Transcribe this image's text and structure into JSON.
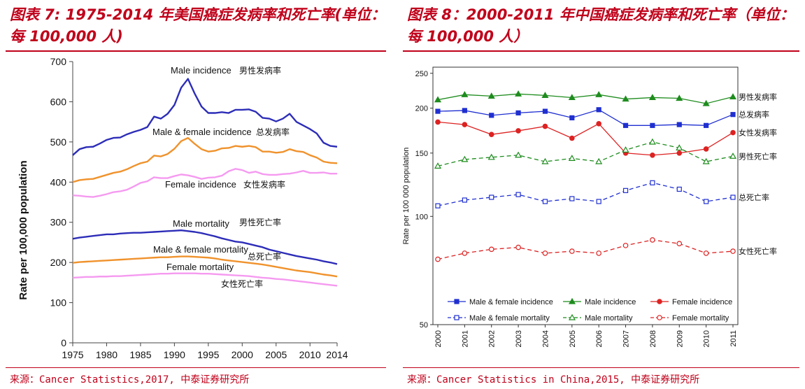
{
  "left": {
    "title": "图表 7: 1975-2014 年美国癌症发病率和死亡率(单位：每 100,000 人)",
    "source": "来源：Cancer Statistics,2017, 中泰证券研究所",
    "colors": {
      "blue": "#2d2db8",
      "orange": "#f0922c",
      "pink": "#f59af0",
      "axis": "#444444"
    },
    "chart_data": {
      "type": "line",
      "ylabel": "Rate per 100,000 population",
      "ylim": [
        0,
        700
      ],
      "yticks": [
        0,
        100,
        200,
        300,
        400,
        500,
        600,
        700
      ],
      "xlim": [
        1975,
        2014
      ],
      "xticks": [
        1975,
        1980,
        1985,
        1990,
        1995,
        2000,
        2005,
        2010,
        2014
      ],
      "x": [
        1975,
        1976,
        1977,
        1978,
        1979,
        1980,
        1981,
        1982,
        1983,
        1984,
        1985,
        1986,
        1987,
        1988,
        1989,
        1990,
        1991,
        1992,
        1993,
        1994,
        1995,
        1996,
        1997,
        1998,
        1999,
        2000,
        2001,
        2002,
        2003,
        2004,
        2005,
        2006,
        2007,
        2008,
        2009,
        2010,
        2011,
        2012,
        2013,
        2014
      ],
      "series": [
        {
          "name": "Male incidence",
          "name_zh": "男性发病率",
          "color": "blue",
          "values": [
            467,
            482,
            487,
            488,
            496,
            505,
            510,
            511,
            519,
            525,
            530,
            537,
            563,
            558,
            570,
            592,
            635,
            657,
            620,
            588,
            572,
            572,
            574,
            572,
            580,
            580,
            581,
            575,
            560,
            558,
            551,
            558,
            570,
            550,
            541,
            532,
            521,
            498,
            490,
            488
          ]
        },
        {
          "name": "Male & female incidence",
          "name_zh": "总发病率",
          "color": "orange",
          "values": [
            400,
            405,
            407,
            408,
            413,
            418,
            423,
            426,
            432,
            440,
            447,
            451,
            466,
            464,
            470,
            483,
            502,
            510,
            495,
            482,
            476,
            478,
            484,
            485,
            490,
            488,
            490,
            487,
            476,
            476,
            473,
            475,
            482,
            477,
            475,
            467,
            461,
            451,
            448,
            447
          ]
        },
        {
          "name": "Female incidence",
          "name_zh": "女性发病率",
          "color": "pink",
          "values": [
            367,
            366,
            364,
            363,
            366,
            370,
            375,
            377,
            381,
            389,
            398,
            402,
            412,
            410,
            410,
            415,
            419,
            417,
            413,
            408,
            411,
            412,
            416,
            427,
            433,
            430,
            423,
            426,
            420,
            418,
            418,
            420,
            421,
            424,
            428,
            423,
            423,
            424,
            421,
            421
          ]
        },
        {
          "name": "Male mortality",
          "name_zh": "男性死亡率",
          "color": "blue",
          "values": [
            259,
            262,
            264,
            266,
            268,
            270,
            270,
            272,
            273,
            274,
            274,
            275,
            276,
            277,
            278,
            279,
            280,
            278,
            276,
            273,
            269,
            265,
            260,
            256,
            252,
            250,
            246,
            242,
            238,
            232,
            228,
            224,
            220,
            216,
            213,
            210,
            207,
            203,
            200,
            196
          ]
        },
        {
          "name": "Male & female mortality",
          "name_zh": "总死亡率",
          "color": "orange",
          "values": [
            199,
            201,
            202,
            203,
            204,
            205,
            206,
            207,
            208,
            209,
            210,
            211,
            212,
            213,
            213,
            214,
            215,
            215,
            214,
            213,
            212,
            210,
            207,
            205,
            203,
            201,
            199,
            197,
            195,
            192,
            189,
            186,
            183,
            180,
            178,
            176,
            173,
            170,
            168,
            165
          ]
        },
        {
          "name": "Female mortality",
          "name_zh": "女性死亡率",
          "color": "pink",
          "values": [
            162,
            163,
            164,
            164,
            165,
            165,
            166,
            166,
            167,
            168,
            169,
            170,
            171,
            172,
            172,
            173,
            173,
            173,
            173,
            172,
            172,
            171,
            170,
            169,
            168,
            167,
            166,
            164,
            162,
            161,
            159,
            158,
            156,
            154,
            152,
            150,
            148,
            146,
            144,
            142
          ]
        }
      ]
    }
  },
  "right": {
    "title": "图表 8：2000-2011 年中国癌症发病率和死亡率（单位：每 100,000 人）",
    "source": "来源：Cancer Statistics in China,2015, 中泰证券研究所",
    "colors": {
      "blue": "#1f2fd0",
      "green": "#1e8c1e",
      "red": "#dd2222",
      "axis": "#333333"
    },
    "chart_data": {
      "type": "line",
      "yscale": "log",
      "ylabel": "Rate per 100 000 population",
      "ylim": [
        50,
        260
      ],
      "yticks": [
        50,
        100,
        150,
        200,
        250
      ],
      "x": [
        "2000",
        "2001",
        "2002",
        "2003",
        "2004",
        "2005",
        "2006",
        "2007",
        "2008",
        "2009",
        "2010",
        "2011"
      ],
      "series": [
        {
          "name": "Male incidence",
          "name_zh": "男性发病率",
          "color": "green",
          "style": "solid",
          "marker": "triangle-filled",
          "values": [
            211,
            218,
            216,
            219,
            217,
            214,
            218,
            212,
            214,
            213,
            206,
            215
          ]
        },
        {
          "name": "Male & female incidence",
          "name_zh": "总发病率",
          "color": "blue",
          "style": "solid",
          "marker": "square-filled",
          "values": [
            196,
            197,
            191,
            194,
            196,
            188,
            198,
            179,
            179,
            180,
            179,
            192
          ]
        },
        {
          "name": "Female incidence",
          "name_zh": "女性发病率",
          "color": "red",
          "style": "solid",
          "marker": "circle-filled",
          "values": [
            183,
            180,
            169,
            173,
            178,
            165,
            181,
            150,
            148,
            150,
            154,
            171
          ]
        },
        {
          "name": "Male mortality",
          "name_zh": "男性死亡率",
          "color": "green",
          "style": "dashed",
          "marker": "triangle-open",
          "values": [
            138,
            144,
            146,
            148,
            142,
            145,
            142,
            153,
            161,
            155,
            142,
            147
          ]
        },
        {
          "name": "Male & female mortality",
          "name_zh": "总死亡率",
          "color": "blue",
          "style": "dashed",
          "marker": "square-open",
          "values": [
            107,
            111,
            113,
            115,
            110,
            112,
            110,
            118,
            124,
            119,
            110,
            113
          ]
        },
        {
          "name": "Female mortality",
          "name_zh": "女性死亡率",
          "color": "red",
          "style": "dashed",
          "marker": "circle-open",
          "values": [
            76,
            79,
            81,
            82,
            79,
            80,
            79,
            83,
            86,
            84,
            79,
            80
          ]
        }
      ],
      "legend": {
        "placement": "bottom-inside",
        "items": [
          "Male & female incidence",
          "Male incidence",
          "Female incidence",
          "Male & female mortality",
          "Male mortality",
          "Female mortality"
        ]
      }
    }
  }
}
